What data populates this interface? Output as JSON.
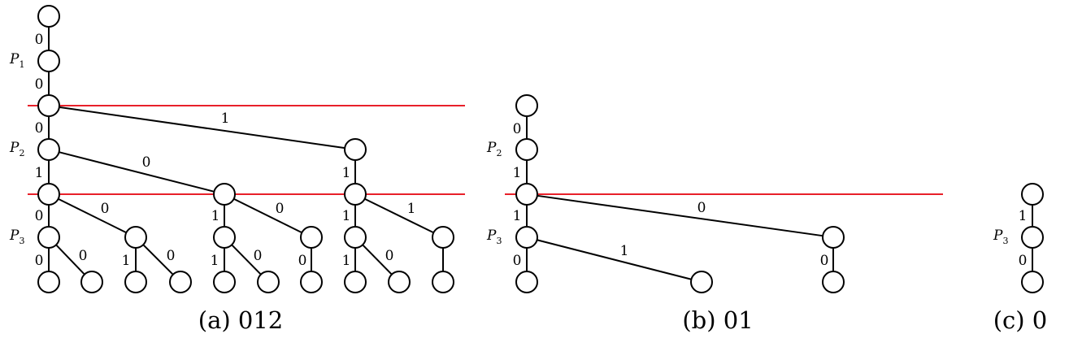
{
  "panels": [
    {
      "id": "a",
      "caption": "(a) 012",
      "separators": [
        {
          "from": 34,
          "to": 572,
          "y": 130
        },
        {
          "from": 34,
          "to": 572,
          "y": 239
        }
      ],
      "players": [
        {
          "base": "P",
          "sub": "1"
        },
        {
          "base": "P",
          "sub": "2"
        },
        {
          "base": "P",
          "sub": "3"
        }
      ],
      "edge_labels": [
        "0",
        "0",
        "1",
        "0",
        "0",
        "1",
        "1",
        "0",
        "0",
        "0",
        "1",
        "1",
        "1",
        "0",
        "0",
        "1",
        "0",
        "1",
        "0",
        "0",
        "1",
        "0"
      ]
    },
    {
      "id": "b",
      "caption": "(b) 01",
      "separators": [
        {
          "from": 621,
          "to": 1160,
          "y": 239
        }
      ],
      "players": [
        {
          "base": "P",
          "sub": "2"
        },
        {
          "base": "P",
          "sub": "3"
        }
      ],
      "edge_labels": [
        "0",
        "1",
        "0",
        "1",
        "1",
        "0",
        "0"
      ]
    },
    {
      "id": "c",
      "caption": "(c) 0",
      "separators": [],
      "players": [
        {
          "base": "P",
          "sub": "3"
        }
      ],
      "edge_labels": [
        "1",
        "0"
      ]
    }
  ]
}
